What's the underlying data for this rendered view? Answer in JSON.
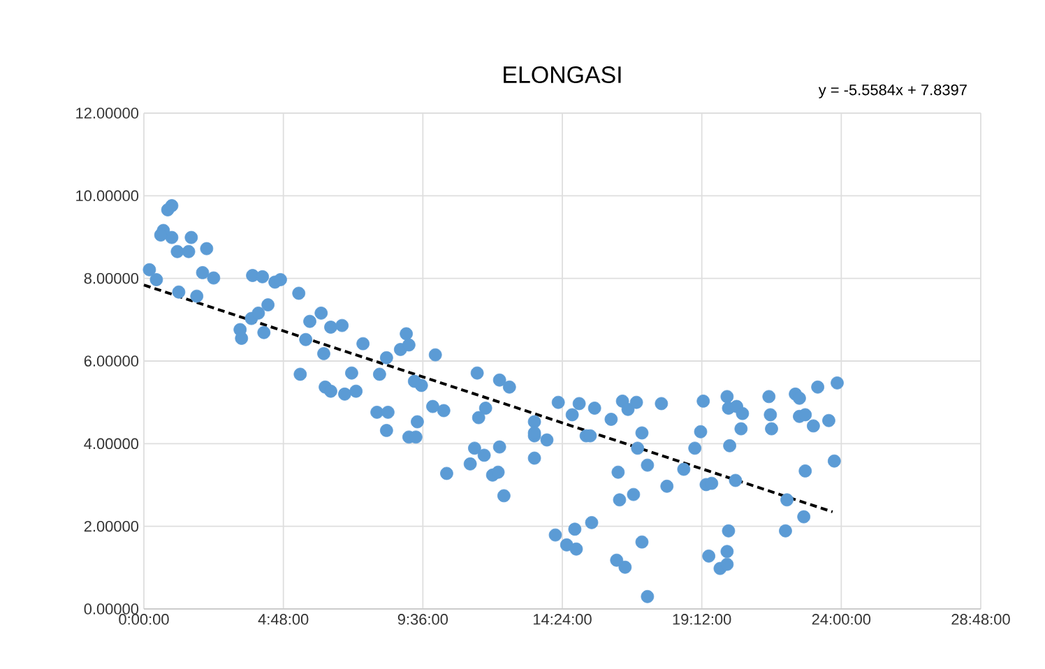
{
  "chart_data": {
    "type": "scatter",
    "title": "ELONGASI",
    "annotations": [
      "y = -5.5584x + 7.8397"
    ],
    "xlim": [
      0,
      28.8
    ],
    "ylim": [
      0,
      12
    ],
    "grid": true,
    "marker": "circle",
    "xticks": [
      {
        "value": 0,
        "label": "0:00:00"
      },
      {
        "value": 4.8,
        "label": "4:48:00"
      },
      {
        "value": 9.6,
        "label": "9:36:00"
      },
      {
        "value": 14.4,
        "label": "14:24:00"
      },
      {
        "value": 19.2,
        "label": "19:12:00"
      },
      {
        "value": 24,
        "label": "24:00:00"
      },
      {
        "value": 28.8,
        "label": "28:48:00"
      }
    ],
    "yticks": [
      {
        "value": 0,
        "label": "0.00000"
      },
      {
        "value": 2,
        "label": "2.00000"
      },
      {
        "value": 4,
        "label": "4.00000"
      },
      {
        "value": 6,
        "label": "6.00000"
      },
      {
        "value": 8,
        "label": "8.00000"
      },
      {
        "value": 10,
        "label": "10.00000"
      },
      {
        "value": 12,
        "label": "12.00000"
      }
    ],
    "series": [
      {
        "type": "scatter",
        "color": "#5b9bd5",
        "x": [
          0.19,
          0.43,
          0.67,
          0.82,
          0.96,
          0.96,
          0.58,
          1.15,
          1.54,
          1.63,
          2.16,
          2.02,
          2.4,
          1.2,
          1.82,
          3.74,
          4.08,
          4.51,
          4.7,
          5.33,
          3.31,
          3.36,
          3.7,
          3.94,
          4.27,
          4.13,
          5.57,
          5.71,
          6.1,
          6.43,
          6.82,
          6.19,
          7.54,
          5.38,
          6.24,
          6.43,
          6.91,
          7.3,
          7.15,
          8.11,
          8.35,
          8.83,
          9.03,
          9.12,
          9.31,
          9.55,
          10.03,
          8.02,
          8.4,
          8.35,
          9.12,
          9.36,
          9.41,
          9.94,
          10.32,
          11.47,
          11.76,
          11.52,
          12.24,
          12.58,
          11.38,
          11.23,
          11.71,
          12.24,
          12.0,
          12.19,
          10.42,
          12.39,
          13.44,
          13.44,
          13.87,
          13.44,
          14.26,
          14.74,
          14.98,
          15.22,
          13.44,
          14.16,
          14.55,
          14.88,
          14.83,
          15.51,
          15.36,
          16.08,
          16.47,
          16.66,
          16.95,
          17.81,
          17.14,
          16.99,
          17.33,
          16.32,
          16.37,
          16.85,
          18.0,
          18.58,
          18.96,
          19.16,
          19.25,
          20.07,
          20.12,
          20.4,
          20.6,
          20.55,
          20.16,
          19.35,
          19.54,
          20.36,
          21.51,
          21.56,
          21.6,
          22.42,
          22.56,
          22.56,
          22.76,
          23.04,
          23.57,
          23.19,
          23.86,
          22.76,
          23.76,
          22.13,
          22.71,
          22.08,
          20.12,
          20.07,
          19.44,
          19.83,
          20.07,
          17.14,
          16.56,
          16.27,
          17.33,
          15.41
        ],
        "values": [
          8.21,
          7.97,
          9.16,
          9.66,
          9.76,
          8.99,
          9.05,
          8.65,
          8.65,
          8.99,
          8.72,
          8.14,
          8.01,
          7.67,
          7.57,
          8.07,
          8.04,
          7.91,
          7.97,
          7.64,
          6.76,
          6.55,
          7.03,
          7.16,
          7.36,
          6.69,
          6.52,
          6.96,
          7.16,
          6.82,
          6.86,
          6.18,
          6.42,
          5.68,
          5.37,
          5.27,
          5.2,
          5.27,
          5.71,
          5.68,
          6.08,
          6.28,
          6.66,
          6.39,
          5.51,
          5.41,
          6.15,
          4.76,
          4.76,
          4.32,
          4.16,
          4.16,
          4.53,
          4.9,
          4.8,
          5.71,
          4.86,
          4.63,
          5.54,
          5.37,
          3.89,
          3.51,
          3.72,
          3.92,
          3.24,
          3.31,
          3.28,
          2.74,
          4.53,
          4.19,
          4.09,
          3.65,
          5.0,
          4.7,
          4.97,
          4.19,
          4.26,
          1.79,
          1.55,
          1.45,
          1.93,
          4.86,
          4.19,
          4.59,
          5.03,
          4.83,
          5.0,
          4.97,
          4.26,
          3.89,
          3.48,
          3.31,
          2.64,
          2.77,
          2.97,
          3.38,
          3.89,
          4.29,
          5.03,
          5.14,
          4.86,
          4.9,
          4.73,
          4.36,
          3.95,
          3.01,
          3.04,
          3.11,
          5.14,
          4.7,
          4.36,
          5.2,
          5.1,
          4.66,
          4.7,
          4.43,
          4.56,
          5.37,
          5.47,
          3.34,
          3.58,
          2.64,
          2.23,
          1.89,
          1.89,
          1.39,
          1.28,
          0.98,
          1.08,
          1.62,
          1.01,
          1.18,
          0.3,
          2.09
        ]
      },
      {
        "type": "line",
        "color": "#000000",
        "line_style": "dashed",
        "marker": "none",
        "x": [
          0,
          23.7
        ],
        "values": [
          7.84,
          2.35
        ]
      }
    ]
  }
}
